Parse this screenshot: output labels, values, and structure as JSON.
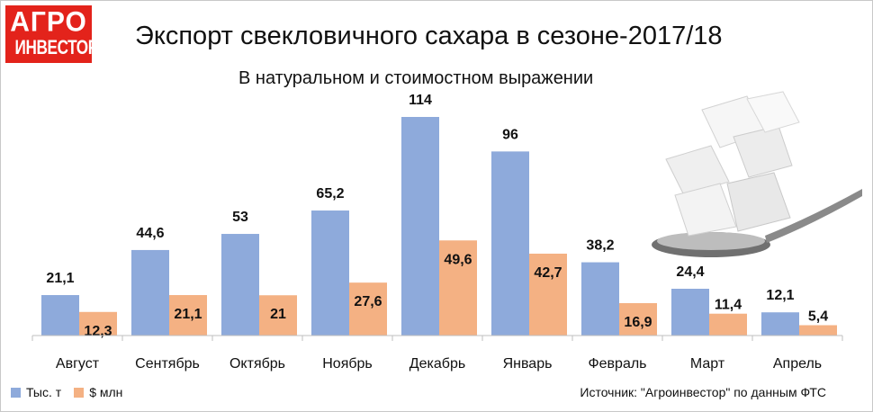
{
  "logo": {
    "line1": "АГРО",
    "line2": "ИНВЕСТОР"
  },
  "header": {
    "title": "Экспорт свекловичного сахара в сезоне-2017/18",
    "subtitle": "В натуральном и стоимостном выражении"
  },
  "footer": {
    "source": "Источник: \"Агроинвестор\" по данным ФТС"
  },
  "colors": {
    "series1": "#8eaadb",
    "series2": "#f4b183",
    "brand": "#e3231b"
  },
  "chart_data": {
    "type": "bar",
    "title": "Экспорт свекловичного сахара в сезоне-2017/18",
    "subtitle": "В натуральном и стоимостном выражении",
    "categories": [
      "Август",
      "Сентябрь",
      "Октябрь",
      "Ноябрь",
      "Декабрь",
      "Январь",
      "Февраль",
      "Март",
      "Апрель"
    ],
    "series": [
      {
        "name": "Тыс. т",
        "values": [
          21.1,
          44.6,
          53,
          65.2,
          114,
          96,
          38.2,
          24.4,
          12.1
        ],
        "labels": [
          "21,1",
          "44,6",
          "53",
          "65,2",
          "114",
          "96",
          "38,2",
          "24,4",
          "12,1"
        ]
      },
      {
        "name": "$ млн",
        "values": [
          12.3,
          21.1,
          21,
          27.6,
          49.6,
          42.7,
          16.9,
          11.4,
          5.4
        ],
        "labels": [
          "12,3",
          "21,1",
          "21",
          "27,6",
          "49,6",
          "42,7",
          "16,9",
          "11,4",
          "5,4"
        ]
      }
    ],
    "xlabel": "",
    "ylabel": "",
    "ylim": [
      0,
      114
    ],
    "grid": false,
    "legend": "bottom-left"
  }
}
